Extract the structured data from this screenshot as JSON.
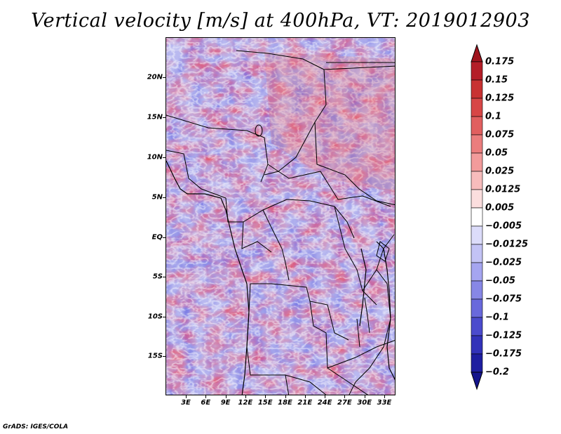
{
  "title": "Vertical velocity [m/s] at 400hPa, VT: 2019012903",
  "credit": "GrADS: IGES/COLA",
  "lat_labels": [
    "20N",
    "15N",
    "10N",
    "5N",
    "EQ",
    "5S",
    "10S",
    "15S"
  ],
  "lon_labels": [
    "3E",
    "6E",
    "9E",
    "12E",
    "15E",
    "18E",
    "21E",
    "24E",
    "27E",
    "30E",
    "33E"
  ],
  "colorbar": {
    "labels": [
      "0.175",
      "0.15",
      "0.125",
      "0.1",
      "0.075",
      "0.05",
      "0.025",
      "0.0125",
      "0.005",
      "−0.005",
      "−0.0125",
      "−0.025",
      "−0.05",
      "−0.075",
      "−0.1",
      "−0.125",
      "−0.175",
      "−0.2"
    ],
    "colors": [
      "#a0141e",
      "#b41e28",
      "#c83232",
      "#d74646",
      "#e15f5f",
      "#eb7d7d",
      "#f29b9b",
      "#f7bcbc",
      "#fbdede",
      "#ffffff",
      "#dcdcfa",
      "#c3c3f5",
      "#a5a5f0",
      "#8787e6",
      "#6969dc",
      "#4b4bcd",
      "#3232b9",
      "#1e1ea0",
      "#14148c"
    ]
  }
}
